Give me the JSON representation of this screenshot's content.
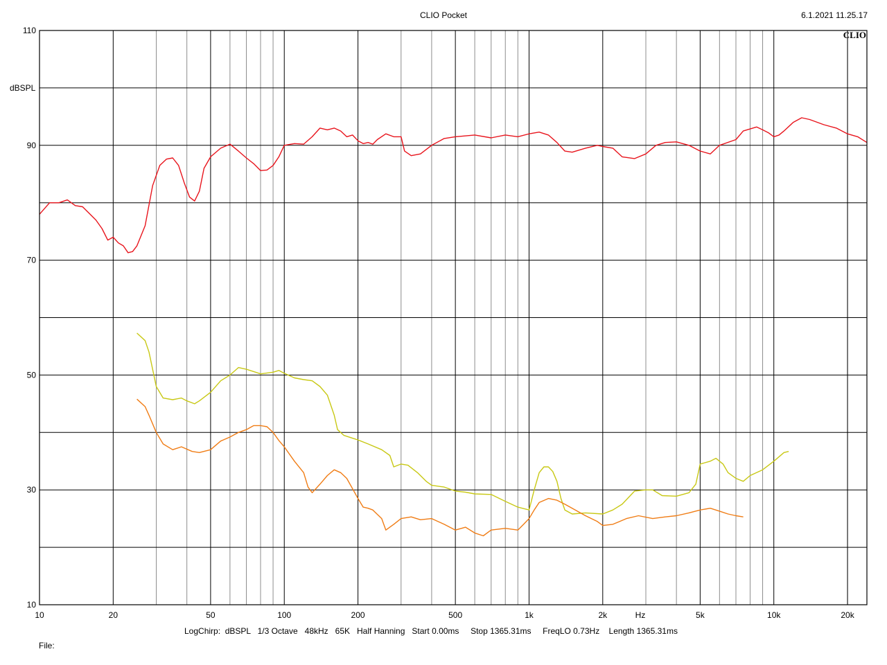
{
  "header": {
    "title": "CLIO Pocket",
    "datetime": "6.1.2021 11.25.17",
    "brand": "CLIO"
  },
  "footer": {
    "settings": "LogChirp:  dBSPL   1/3 Octave   48kHz   65K   Half Hanning   Start 0.00ms     Stop 1365.31ms     FreqLO 0.73Hz    Length 1365.31ms",
    "file_label": "File:"
  },
  "chart_data": {
    "type": "line",
    "title": "",
    "xlabel": "Hz",
    "ylabel": "dBSPL",
    "xscale": "log",
    "xlim": [
      10,
      24000
    ],
    "ylim": [
      10,
      110
    ],
    "grid": true,
    "x_ticks": [
      {
        "value": 10,
        "label": "10"
      },
      {
        "value": 20,
        "label": "20"
      },
      {
        "value": 50,
        "label": "50"
      },
      {
        "value": 100,
        "label": "100"
      },
      {
        "value": 200,
        "label": "200"
      },
      {
        "value": 500,
        "label": "500"
      },
      {
        "value": 1000,
        "label": "1k"
      },
      {
        "value": 2000,
        "label": "2k"
      },
      {
        "value": 5000,
        "label": "5k"
      },
      {
        "value": 10000,
        "label": "10k"
      },
      {
        "value": 20000,
        "label": "20k"
      }
    ],
    "y_ticks": [
      {
        "value": 10,
        "label": "10"
      },
      {
        "value": 30,
        "label": "30"
      },
      {
        "value": 50,
        "label": "50"
      },
      {
        "value": 70,
        "label": "70"
      },
      {
        "value": 90,
        "label": "90"
      },
      {
        "value": 110,
        "label": "110"
      }
    ],
    "y_grid": [
      10,
      20,
      30,
      40,
      50,
      60,
      70,
      80,
      90,
      100,
      110
    ],
    "series": [
      {
        "color": "#e8141c",
        "points": [
          [
            10,
            78
          ],
          [
            11,
            80
          ],
          [
            12,
            80
          ],
          [
            13,
            80.5
          ],
          [
            14,
            79.5
          ],
          [
            15,
            79.3
          ],
          [
            17,
            77
          ],
          [
            18,
            75.5
          ],
          [
            19,
            73.5
          ],
          [
            20,
            74
          ],
          [
            21,
            73
          ],
          [
            22,
            72.5
          ],
          [
            23,
            71.3
          ],
          [
            24,
            71.5
          ],
          [
            25,
            72.5
          ],
          [
            27,
            76
          ],
          [
            29,
            83
          ],
          [
            31,
            86.5
          ],
          [
            33,
            87.6
          ],
          [
            35,
            87.8
          ],
          [
            37,
            86.5
          ],
          [
            39,
            83.5
          ],
          [
            41,
            81
          ],
          [
            43,
            80.3
          ],
          [
            45,
            82
          ],
          [
            47,
            86
          ],
          [
            50,
            88
          ],
          [
            55,
            89.5
          ],
          [
            60,
            90.2
          ],
          [
            65,
            89
          ],
          [
            70,
            87.8
          ],
          [
            75,
            86.8
          ],
          [
            80,
            85.6
          ],
          [
            85,
            85.7
          ],
          [
            90,
            86.5
          ],
          [
            95,
            88
          ],
          [
            100,
            90
          ],
          [
            110,
            90.3
          ],
          [
            120,
            90.2
          ],
          [
            130,
            91.5
          ],
          [
            140,
            93
          ],
          [
            150,
            92.7
          ],
          [
            160,
            93
          ],
          [
            170,
            92.5
          ],
          [
            180,
            91.5
          ],
          [
            190,
            91.8
          ],
          [
            200,
            90.8
          ],
          [
            210,
            90.3
          ],
          [
            220,
            90.5
          ],
          [
            230,
            90.2
          ],
          [
            240,
            91
          ],
          [
            260,
            92
          ],
          [
            280,
            91.5
          ],
          [
            300,
            91.5
          ],
          [
            310,
            89
          ],
          [
            330,
            88.2
          ],
          [
            360,
            88.5
          ],
          [
            400,
            90
          ],
          [
            450,
            91.2
          ],
          [
            500,
            91.5
          ],
          [
            600,
            91.8
          ],
          [
            700,
            91.3
          ],
          [
            800,
            91.8
          ],
          [
            900,
            91.5
          ],
          [
            1000,
            92
          ],
          [
            1100,
            92.3
          ],
          [
            1200,
            91.8
          ],
          [
            1300,
            90.5
          ],
          [
            1400,
            89
          ],
          [
            1500,
            88.8
          ],
          [
            1700,
            89.5
          ],
          [
            1900,
            90
          ],
          [
            2000,
            89.8
          ],
          [
            2200,
            89.5
          ],
          [
            2400,
            88
          ],
          [
            2700,
            87.7
          ],
          [
            3000,
            88.5
          ],
          [
            3300,
            90
          ],
          [
            3600,
            90.5
          ],
          [
            4000,
            90.6
          ],
          [
            4500,
            90
          ],
          [
            5000,
            89
          ],
          [
            5500,
            88.5
          ],
          [
            6000,
            90
          ],
          [
            7000,
            91
          ],
          [
            7500,
            92.5
          ],
          [
            8500,
            93.2
          ],
          [
            9000,
            92.7
          ],
          [
            9500,
            92.2
          ],
          [
            10000,
            91.5
          ],
          [
            10500,
            91.8
          ],
          [
            11000,
            92.5
          ],
          [
            12000,
            94
          ],
          [
            13000,
            94.8
          ],
          [
            14000,
            94.5
          ],
          [
            16000,
            93.6
          ],
          [
            18000,
            93
          ],
          [
            20000,
            92
          ],
          [
            22000,
            91.5
          ],
          [
            24000,
            90.5
          ]
        ]
      },
      {
        "color": "#c8c814",
        "points": [
          [
            25,
            57.3
          ],
          [
            27,
            56
          ],
          [
            28,
            54
          ],
          [
            30,
            48
          ],
          [
            32,
            46
          ],
          [
            35,
            45.7
          ],
          [
            38,
            46
          ],
          [
            40,
            45.5
          ],
          [
            43,
            45
          ],
          [
            45,
            45.5
          ],
          [
            50,
            47
          ],
          [
            55,
            49
          ],
          [
            60,
            50
          ],
          [
            65,
            51.3
          ],
          [
            70,
            51
          ],
          [
            75,
            50.6
          ],
          [
            80,
            50.2
          ],
          [
            90,
            50.5
          ],
          [
            95,
            50.8
          ],
          [
            100,
            50.3
          ],
          [
            110,
            49.5
          ],
          [
            120,
            49.2
          ],
          [
            130,
            49
          ],
          [
            140,
            48
          ],
          [
            150,
            46.5
          ],
          [
            160,
            43
          ],
          [
            165,
            40.5
          ],
          [
            175,
            39.5
          ],
          [
            190,
            39
          ],
          [
            200,
            38.7
          ],
          [
            220,
            38
          ],
          [
            250,
            37
          ],
          [
            270,
            36
          ],
          [
            280,
            34
          ],
          [
            300,
            34.5
          ],
          [
            320,
            34.3
          ],
          [
            350,
            33
          ],
          [
            380,
            31.5
          ],
          [
            400,
            30.8
          ],
          [
            450,
            30.5
          ],
          [
            500,
            29.8
          ],
          [
            550,
            29.6
          ],
          [
            600,
            29.3
          ],
          [
            700,
            29.2
          ],
          [
            800,
            28
          ],
          [
            900,
            27
          ],
          [
            1000,
            26.5
          ],
          [
            1050,
            30
          ],
          [
            1100,
            33
          ],
          [
            1150,
            34
          ],
          [
            1200,
            34
          ],
          [
            1250,
            33.2
          ],
          [
            1300,
            31.5
          ],
          [
            1350,
            28.5
          ],
          [
            1400,
            26.5
          ],
          [
            1500,
            25.8
          ],
          [
            1700,
            26
          ],
          [
            2000,
            25.8
          ],
          [
            2200,
            26.5
          ],
          [
            2400,
            27.5
          ],
          [
            2700,
            29.8
          ],
          [
            3000,
            30
          ],
          [
            3200,
            30
          ],
          [
            3500,
            29
          ],
          [
            4000,
            28.9
          ],
          [
            4500,
            29.5
          ],
          [
            4800,
            31
          ],
          [
            5000,
            34.5
          ],
          [
            5500,
            35
          ],
          [
            5800,
            35.5
          ],
          [
            6200,
            34.5
          ],
          [
            6500,
            33
          ],
          [
            7000,
            32
          ],
          [
            7500,
            31.5
          ],
          [
            8000,
            32.5
          ],
          [
            9000,
            33.5
          ],
          [
            10000,
            35
          ],
          [
            11000,
            36.5
          ],
          [
            11500,
            36.7
          ]
        ]
      },
      {
        "color": "#f07c14",
        "points": [
          [
            25,
            45.8
          ],
          [
            27,
            44.5
          ],
          [
            28,
            43
          ],
          [
            30,
            40
          ],
          [
            32,
            38
          ],
          [
            35,
            37
          ],
          [
            38,
            37.5
          ],
          [
            42,
            36.7
          ],
          [
            45,
            36.5
          ],
          [
            50,
            37
          ],
          [
            55,
            38.5
          ],
          [
            60,
            39.2
          ],
          [
            65,
            40
          ],
          [
            70,
            40.5
          ],
          [
            75,
            41.2
          ],
          [
            80,
            41.2
          ],
          [
            85,
            41
          ],
          [
            90,
            40
          ],
          [
            95,
            38.6
          ],
          [
            100,
            37.5
          ],
          [
            110,
            35
          ],
          [
            120,
            33
          ],
          [
            125,
            30.5
          ],
          [
            130,
            29.5
          ],
          [
            140,
            31
          ],
          [
            150,
            32.5
          ],
          [
            160,
            33.5
          ],
          [
            170,
            33
          ],
          [
            180,
            32
          ],
          [
            200,
            28.5
          ],
          [
            210,
            27
          ],
          [
            220,
            26.8
          ],
          [
            230,
            26.5
          ],
          [
            250,
            25
          ],
          [
            260,
            23
          ],
          [
            280,
            24
          ],
          [
            300,
            25
          ],
          [
            330,
            25.3
          ],
          [
            360,
            24.8
          ],
          [
            400,
            25
          ],
          [
            450,
            24
          ],
          [
            500,
            23
          ],
          [
            550,
            23.5
          ],
          [
            600,
            22.5
          ],
          [
            650,
            22
          ],
          [
            700,
            23
          ],
          [
            800,
            23.3
          ],
          [
            900,
            23
          ],
          [
            950,
            24
          ],
          [
            1000,
            25
          ],
          [
            1050,
            26.5
          ],
          [
            1100,
            27.8
          ],
          [
            1200,
            28.5
          ],
          [
            1300,
            28.2
          ],
          [
            1400,
            27.5
          ],
          [
            1500,
            26.8
          ],
          [
            1700,
            25.5
          ],
          [
            1900,
            24.5
          ],
          [
            2000,
            23.8
          ],
          [
            2200,
            24
          ],
          [
            2500,
            25
          ],
          [
            2800,
            25.5
          ],
          [
            3200,
            25
          ],
          [
            3600,
            25.3
          ],
          [
            4000,
            25.5
          ],
          [
            4500,
            26
          ],
          [
            5000,
            26.5
          ],
          [
            5500,
            26.8
          ],
          [
            6000,
            26.3
          ],
          [
            6500,
            25.8
          ],
          [
            7000,
            25.5
          ],
          [
            7500,
            25.3
          ]
        ]
      }
    ]
  }
}
